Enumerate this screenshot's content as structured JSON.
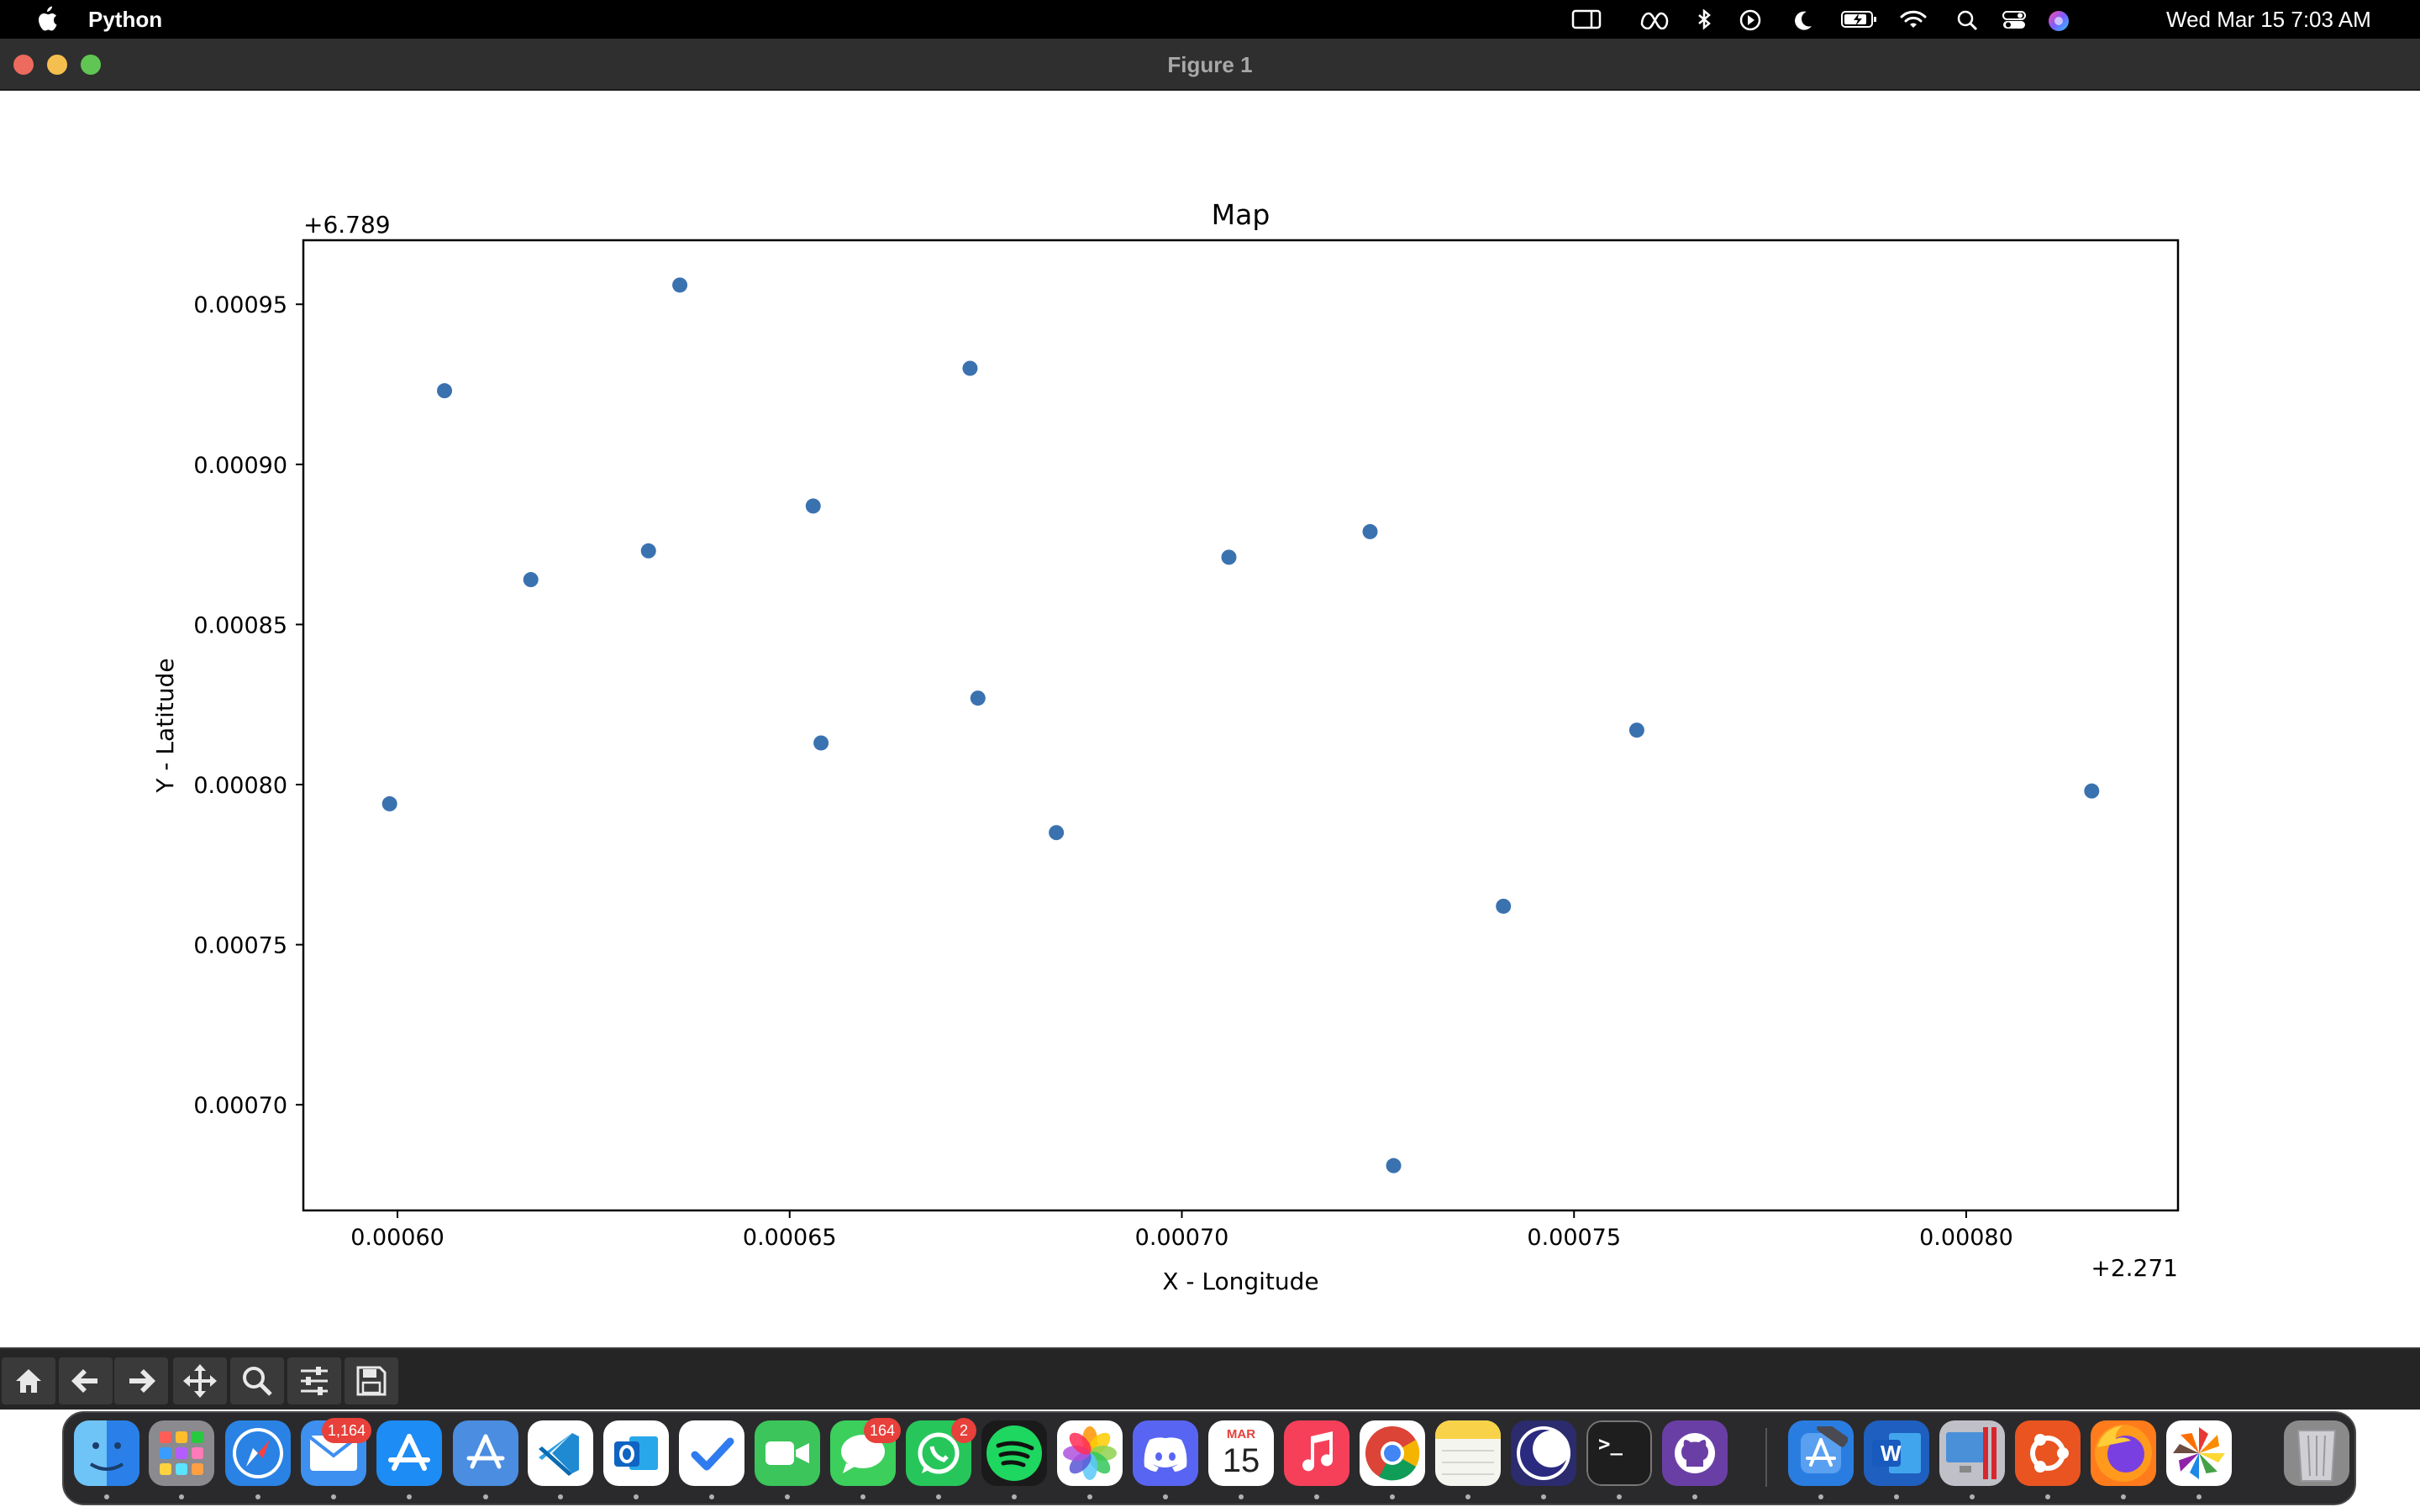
{
  "menubar": {
    "app_name": "Python",
    "datetime": "Wed Mar 15  7:03 AM",
    "status_icons": [
      "sidebar-icon",
      "meta-icon",
      "bluetooth-icon",
      "play-icon",
      "moon-icon",
      "battery-icon",
      "wifi-icon",
      "search-icon",
      "control-center-icon",
      "siri-icon"
    ]
  },
  "window": {
    "title": "Figure 1"
  },
  "chart_data": {
    "type": "scatter",
    "title": "Map",
    "xlabel": "X - Longitude",
    "ylabel": "Y - Latitude",
    "x_offset_label": "+2.271",
    "y_offset_label": "+6.789",
    "xlim": [
      0.000588,
      0.000827
    ],
    "ylim": [
      0.000667,
      0.00097
    ],
    "xticks": [
      0.0006,
      0.00065,
      0.0007,
      0.00075,
      0.0008
    ],
    "xtick_labels": [
      "0.00060",
      "0.00065",
      "0.00070",
      "0.00075",
      "0.00080"
    ],
    "yticks": [
      0.0007,
      0.00075,
      0.0008,
      0.00085,
      0.0009,
      0.00095
    ],
    "ytick_labels": [
      "0.00070",
      "0.00075",
      "0.00080",
      "0.00085",
      "0.00090",
      "0.00095"
    ],
    "grid": false,
    "color": "#3a72b0",
    "points": [
      {
        "x": 0.000599,
        "y": 0.000794
      },
      {
        "x": 0.000606,
        "y": 0.000923
      },
      {
        "x": 0.000617,
        "y": 0.000864
      },
      {
        "x": 0.000632,
        "y": 0.000873
      },
      {
        "x": 0.000636,
        "y": 0.000956
      },
      {
        "x": 0.000653,
        "y": 0.000887
      },
      {
        "x": 0.000654,
        "y": 0.000813
      },
      {
        "x": 0.000673,
        "y": 0.00093
      },
      {
        "x": 0.000674,
        "y": 0.000827
      },
      {
        "x": 0.000684,
        "y": 0.000785
      },
      {
        "x": 0.000706,
        "y": 0.000871
      },
      {
        "x": 0.000724,
        "y": 0.000879
      },
      {
        "x": 0.000727,
        "y": 0.000681
      },
      {
        "x": 0.000741,
        "y": 0.000762
      },
      {
        "x": 0.000758,
        "y": 0.000817
      },
      {
        "x": 0.000816,
        "y": 0.000798
      }
    ]
  },
  "toolbar": {
    "buttons": [
      "home-icon",
      "back-icon",
      "forward-icon",
      "pan-icon",
      "zoom-icon",
      "configure-subplots-icon",
      "save-icon"
    ]
  },
  "dock": {
    "apps": [
      {
        "name": "finder",
        "label": "",
        "color": "#3f9be8",
        "badge": ""
      },
      {
        "name": "launchpad",
        "label": "",
        "color": "#8a8a8f",
        "badge": ""
      },
      {
        "name": "safari",
        "label": "",
        "color": "#2a82e4",
        "badge": ""
      },
      {
        "name": "mail",
        "label": "",
        "color": "#3d8ff0",
        "badge": "1,164"
      },
      {
        "name": "app-store",
        "label": "",
        "color": "#1e8cf5",
        "badge": ""
      },
      {
        "name": "xcode-instruments",
        "label": "",
        "color": "#4b8de0",
        "badge": ""
      },
      {
        "name": "vscode",
        "label": "",
        "color": "#ffffff",
        "badge": ""
      },
      {
        "name": "outlook",
        "label": "",
        "color": "#ffffff",
        "badge": ""
      },
      {
        "name": "tasks",
        "label": "",
        "color": "#ffffff",
        "badge": ""
      },
      {
        "name": "facetime",
        "label": "",
        "color": "#3bc55a",
        "badge": ""
      },
      {
        "name": "messages",
        "label": "",
        "color": "#3ccf5c",
        "badge": "164"
      },
      {
        "name": "whatsapp",
        "label": "",
        "color": "#27c65b",
        "badge": "2"
      },
      {
        "name": "spotify",
        "label": "",
        "color": "#1a1a1a",
        "badge": ""
      },
      {
        "name": "photos",
        "label": "",
        "color": "#ffffff",
        "badge": ""
      },
      {
        "name": "discord",
        "label": "",
        "color": "#5865f2",
        "badge": ""
      },
      {
        "name": "calendar",
        "label": "15",
        "month": "MAR",
        "color": "#ffffff",
        "badge": ""
      },
      {
        "name": "music",
        "label": "",
        "color": "#f6405a",
        "badge": ""
      },
      {
        "name": "chrome",
        "label": "",
        "color": "#ffffff",
        "badge": ""
      },
      {
        "name": "notes",
        "label": "",
        "color": "#f5f5f0",
        "badge": ""
      },
      {
        "name": "nightowl",
        "label": "",
        "color": "#2b2b6e",
        "badge": ""
      },
      {
        "name": "terminal",
        "label": ">_",
        "color": "#1e1e1e",
        "badge": ""
      },
      {
        "name": "github-desktop",
        "label": "",
        "color": "#6a3fa5",
        "badge": ""
      },
      {
        "name": "xcode",
        "label": "",
        "color": "#2a7de0",
        "badge": ""
      },
      {
        "name": "word",
        "label": "W",
        "color": "#1f5fbf",
        "badge": ""
      },
      {
        "name": "parallels",
        "label": "",
        "color": "#c0c0c8",
        "badge": ""
      },
      {
        "name": "ubuntu",
        "label": "",
        "color": "#e95420",
        "badge": ""
      },
      {
        "name": "firefox",
        "label": "",
        "color": "#ff7b1c",
        "badge": ""
      },
      {
        "name": "pinwheel",
        "label": "",
        "color": "#ffffff",
        "badge": ""
      },
      {
        "name": "trash",
        "label": "",
        "color": "#8a8a8a",
        "badge": ""
      }
    ]
  }
}
